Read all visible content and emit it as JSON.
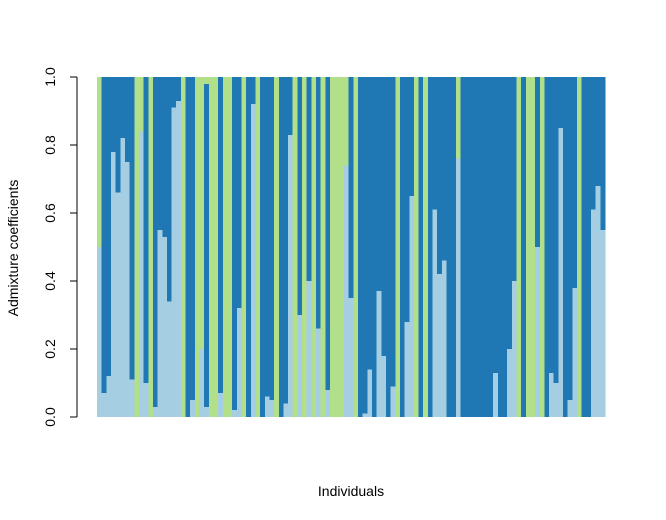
{
  "chart_data": {
    "type": "bar",
    "stacked": true,
    "title": "",
    "xlabel": "Individuals",
    "ylabel": "Admixture coefficients",
    "ylim": [
      0,
      1
    ],
    "yticks": [
      "0.0",
      "0.2",
      "0.4",
      "0.6",
      "0.8",
      "1.0"
    ],
    "grid": false,
    "legend": "none",
    "colors": {
      "k1": "#a6cee3",
      "k2": "#1f78b4",
      "k3": "#b2df8a"
    },
    "series": [
      {
        "key": "k1",
        "values": [
          0.5,
          0.07,
          0.12,
          0.78,
          0.66,
          0.82,
          0.75,
          0.11,
          0.0,
          0.84,
          0.1,
          0.0,
          0.03,
          0.55,
          0.53,
          0.34,
          0.91,
          0.93,
          0.0,
          0.0,
          0.05,
          0.0,
          0.2,
          0.03,
          0.0,
          0.0,
          0.07,
          0.0,
          0.0,
          0.02,
          0.32,
          0.0,
          0.0,
          0.92,
          0.0,
          0.0,
          0.06,
          0.05,
          0.0,
          0.0,
          0.04,
          0.83,
          0.0,
          0.3,
          0.0,
          0.4,
          0.0,
          0.26,
          0.0,
          0.08,
          0.0,
          0.0,
          0.0,
          0.74,
          0.35,
          0.0,
          0.0,
          0.01,
          0.14,
          0.0,
          0.37,
          0.18,
          0.0,
          0.09,
          0.0,
          0.0,
          0.28,
          0.65,
          0.0,
          0.0,
          0.0,
          0.0,
          0.61,
          0.42,
          0.46,
          0.0,
          0.0,
          0.76,
          0.0,
          0.0,
          0.0,
          0.0,
          0.0,
          0.0,
          0.0,
          0.13,
          0.0,
          0.0,
          0.2,
          0.4,
          0.0,
          0.0,
          0.0,
          0.0,
          0.5,
          0.0,
          0.0,
          0.13,
          0.1,
          0.85,
          0.0,
          0.05,
          0.38,
          0.0,
          0.0,
          0.0,
          0.61,
          0.68,
          0.55
        ]
      },
      {
        "key": "k2",
        "values": [
          0.0,
          0.93,
          0.88,
          0.22,
          0.34,
          0.18,
          0.25,
          0.89,
          0.0,
          0.0,
          0.9,
          0.0,
          0.97,
          0.45,
          0.47,
          0.66,
          0.09,
          0.07,
          0.0,
          1.0,
          0.95,
          0.0,
          0.0,
          0.95,
          0.0,
          0.0,
          0.93,
          0.0,
          0.0,
          0.98,
          0.68,
          0.0,
          1.0,
          0.08,
          0.0,
          1.0,
          0.94,
          0.95,
          0.0,
          1.0,
          0.96,
          0.17,
          0.0,
          0.7,
          0.0,
          0.6,
          0.0,
          0.74,
          0.0,
          0.92,
          0.0,
          0.0,
          0.0,
          0.0,
          0.65,
          0.0,
          1.0,
          0.99,
          0.86,
          1.0,
          0.63,
          0.82,
          1.0,
          0.91,
          0.0,
          1.0,
          0.72,
          0.35,
          0.0,
          1.0,
          0.0,
          1.0,
          0.39,
          0.58,
          0.54,
          1.0,
          1.0,
          0.0,
          1.0,
          1.0,
          1.0,
          1.0,
          1.0,
          1.0,
          1.0,
          0.87,
          1.0,
          1.0,
          0.8,
          0.6,
          0.0,
          1.0,
          0.0,
          0.0,
          0.5,
          0.0,
          1.0,
          0.87,
          0.9,
          0.15,
          1.0,
          0.95,
          0.62,
          0.0,
          1.0,
          1.0,
          0.39,
          0.32,
          0.45
        ]
      },
      {
        "key": "k3",
        "values": [
          0.5,
          0.0,
          0.0,
          0.0,
          0.0,
          0.0,
          0.0,
          0.0,
          1.0,
          0.16,
          0.0,
          1.0,
          0.0,
          0.0,
          0.0,
          0.0,
          0.0,
          0.0,
          1.0,
          0.0,
          0.0,
          1.0,
          0.8,
          0.02,
          1.0,
          1.0,
          0.0,
          1.0,
          1.0,
          0.0,
          0.0,
          1.0,
          0.0,
          0.0,
          1.0,
          0.0,
          0.0,
          0.0,
          1.0,
          0.0,
          0.0,
          0.0,
          1.0,
          0.0,
          1.0,
          0.0,
          1.0,
          0.0,
          1.0,
          0.0,
          1.0,
          1.0,
          1.0,
          0.26,
          0.0,
          1.0,
          0.0,
          0.0,
          0.0,
          0.0,
          0.0,
          0.0,
          0.0,
          0.0,
          1.0,
          0.0,
          0.0,
          0.0,
          1.0,
          0.0,
          1.0,
          0.0,
          0.0,
          0.0,
          0.0,
          0.0,
          0.0,
          0.24,
          0.0,
          0.0,
          0.0,
          0.0,
          0.0,
          0.0,
          0.0,
          0.0,
          0.0,
          0.0,
          0.0,
          0.0,
          1.0,
          0.0,
          1.0,
          1.0,
          0.0,
          1.0,
          0.0,
          0.0,
          0.0,
          0.0,
          0.0,
          0.0,
          0.0,
          1.0,
          0.0,
          0.0,
          0.0,
          0.0,
          0.0
        ]
      }
    ]
  }
}
